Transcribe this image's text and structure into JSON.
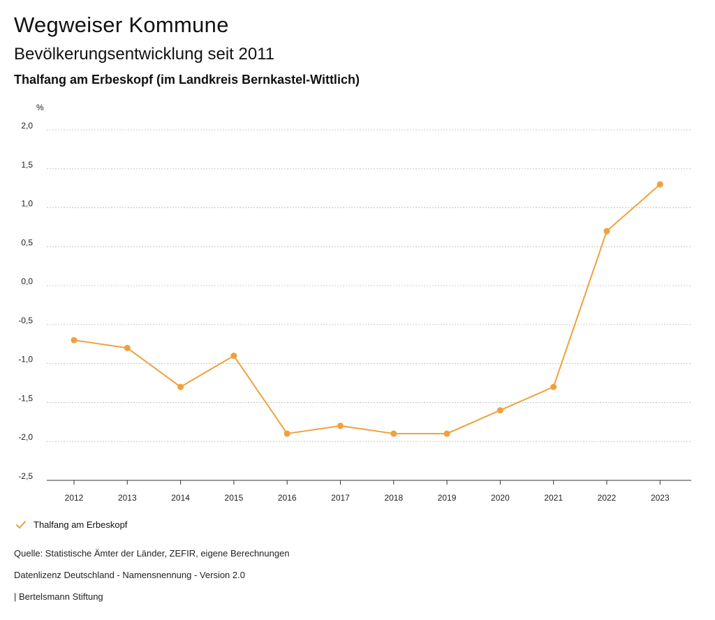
{
  "header": {
    "title": "Wegweiser Kommune",
    "subtitle": "Bevölkerungsentwicklung seit 2011",
    "region": "Thalfang am Erbeskopf (im Landkreis Bernkastel-Wittlich)"
  },
  "legend": {
    "label": "Thalfang am Erbeskopf",
    "icon": "check-icon"
  },
  "footer": {
    "source": "Quelle: Statistische Ämter der Länder, ZEFIR, eigene Berechnungen",
    "license": "Datenlizenz Deutschland - Namensnennung - Version 2.0",
    "publisher": "| Bertelsmann Stiftung"
  },
  "colors": {
    "series": "#f0a03c",
    "grid": "#bbbbbb",
    "axis": "#333333"
  },
  "chart_data": {
    "type": "line",
    "title": "Bevölkerungsentwicklung seit 2011",
    "ylabel": "%",
    "xlabel": "",
    "ylim": [
      -2.5,
      2.0
    ],
    "yticks": [
      2.0,
      1.5,
      1.0,
      0.5,
      0.0,
      -0.5,
      -1.0,
      -1.5,
      -2.0,
      -2.5
    ],
    "ytick_labels": [
      "2,0",
      "1,5",
      "1,0",
      "0,5",
      "0,0",
      "-0,5",
      "-1,0",
      "-1,5",
      "-2,0",
      "-2,5"
    ],
    "grid": true,
    "legend_position": "bottom-left",
    "categories": [
      "2012",
      "2013",
      "2014",
      "2015",
      "2016",
      "2017",
      "2018",
      "2019",
      "2020",
      "2021",
      "2022",
      "2023"
    ],
    "series": [
      {
        "name": "Thalfang am Erbeskopf",
        "values": [
          -0.7,
          -0.8,
          -1.3,
          -0.9,
          -1.9,
          -1.8,
          -1.9,
          -1.9,
          -1.6,
          -1.3,
          0.7,
          1.3
        ]
      }
    ]
  }
}
